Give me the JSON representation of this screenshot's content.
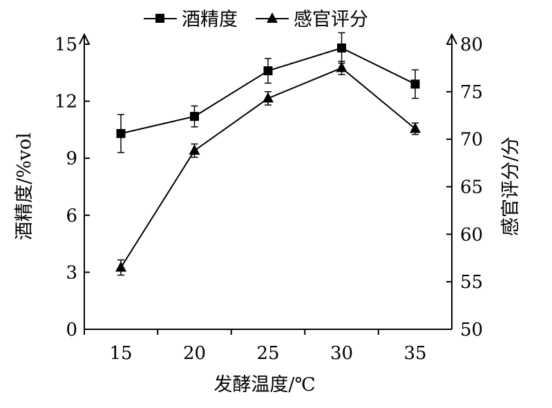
{
  "chart_data": {
    "type": "line",
    "xlabel": "发酵温度/℃",
    "categories": [
      15,
      20,
      25,
      30,
      35
    ],
    "left_axis": {
      "label": "酒精度/%vol",
      "range": [
        0,
        15
      ],
      "ticks": [
        0,
        3,
        6,
        9,
        12,
        15
      ],
      "tick_labels": [
        "0",
        "3",
        "6",
        "9",
        "12",
        "15"
      ]
    },
    "right_axis": {
      "label": "感官评分/分",
      "range": [
        50,
        80
      ],
      "ticks": [
        50,
        55,
        60,
        65,
        70,
        75,
        80
      ],
      "tick_labels": [
        "50",
        "55",
        "60",
        "65",
        "70",
        "75",
        "80"
      ]
    },
    "x_tick_labels": [
      "15",
      "20",
      "25",
      "30",
      "35"
    ],
    "series": [
      {
        "name": "酒精度",
        "axis": "left",
        "marker": "square",
        "values": [
          10.3,
          11.2,
          13.6,
          14.8,
          12.9
        ],
        "error": [
          1.0,
          0.55,
          0.65,
          0.8,
          0.75
        ]
      },
      {
        "name": "感官评分",
        "axis": "right",
        "marker": "triangle",
        "values": [
          56.5,
          68.8,
          74.3,
          77.5,
          71.1
        ],
        "error": [
          0.8,
          0.7,
          0.7,
          0.7,
          0.6
        ]
      }
    ],
    "legend_position": "top-center",
    "grid": false,
    "color": "#000000"
  }
}
